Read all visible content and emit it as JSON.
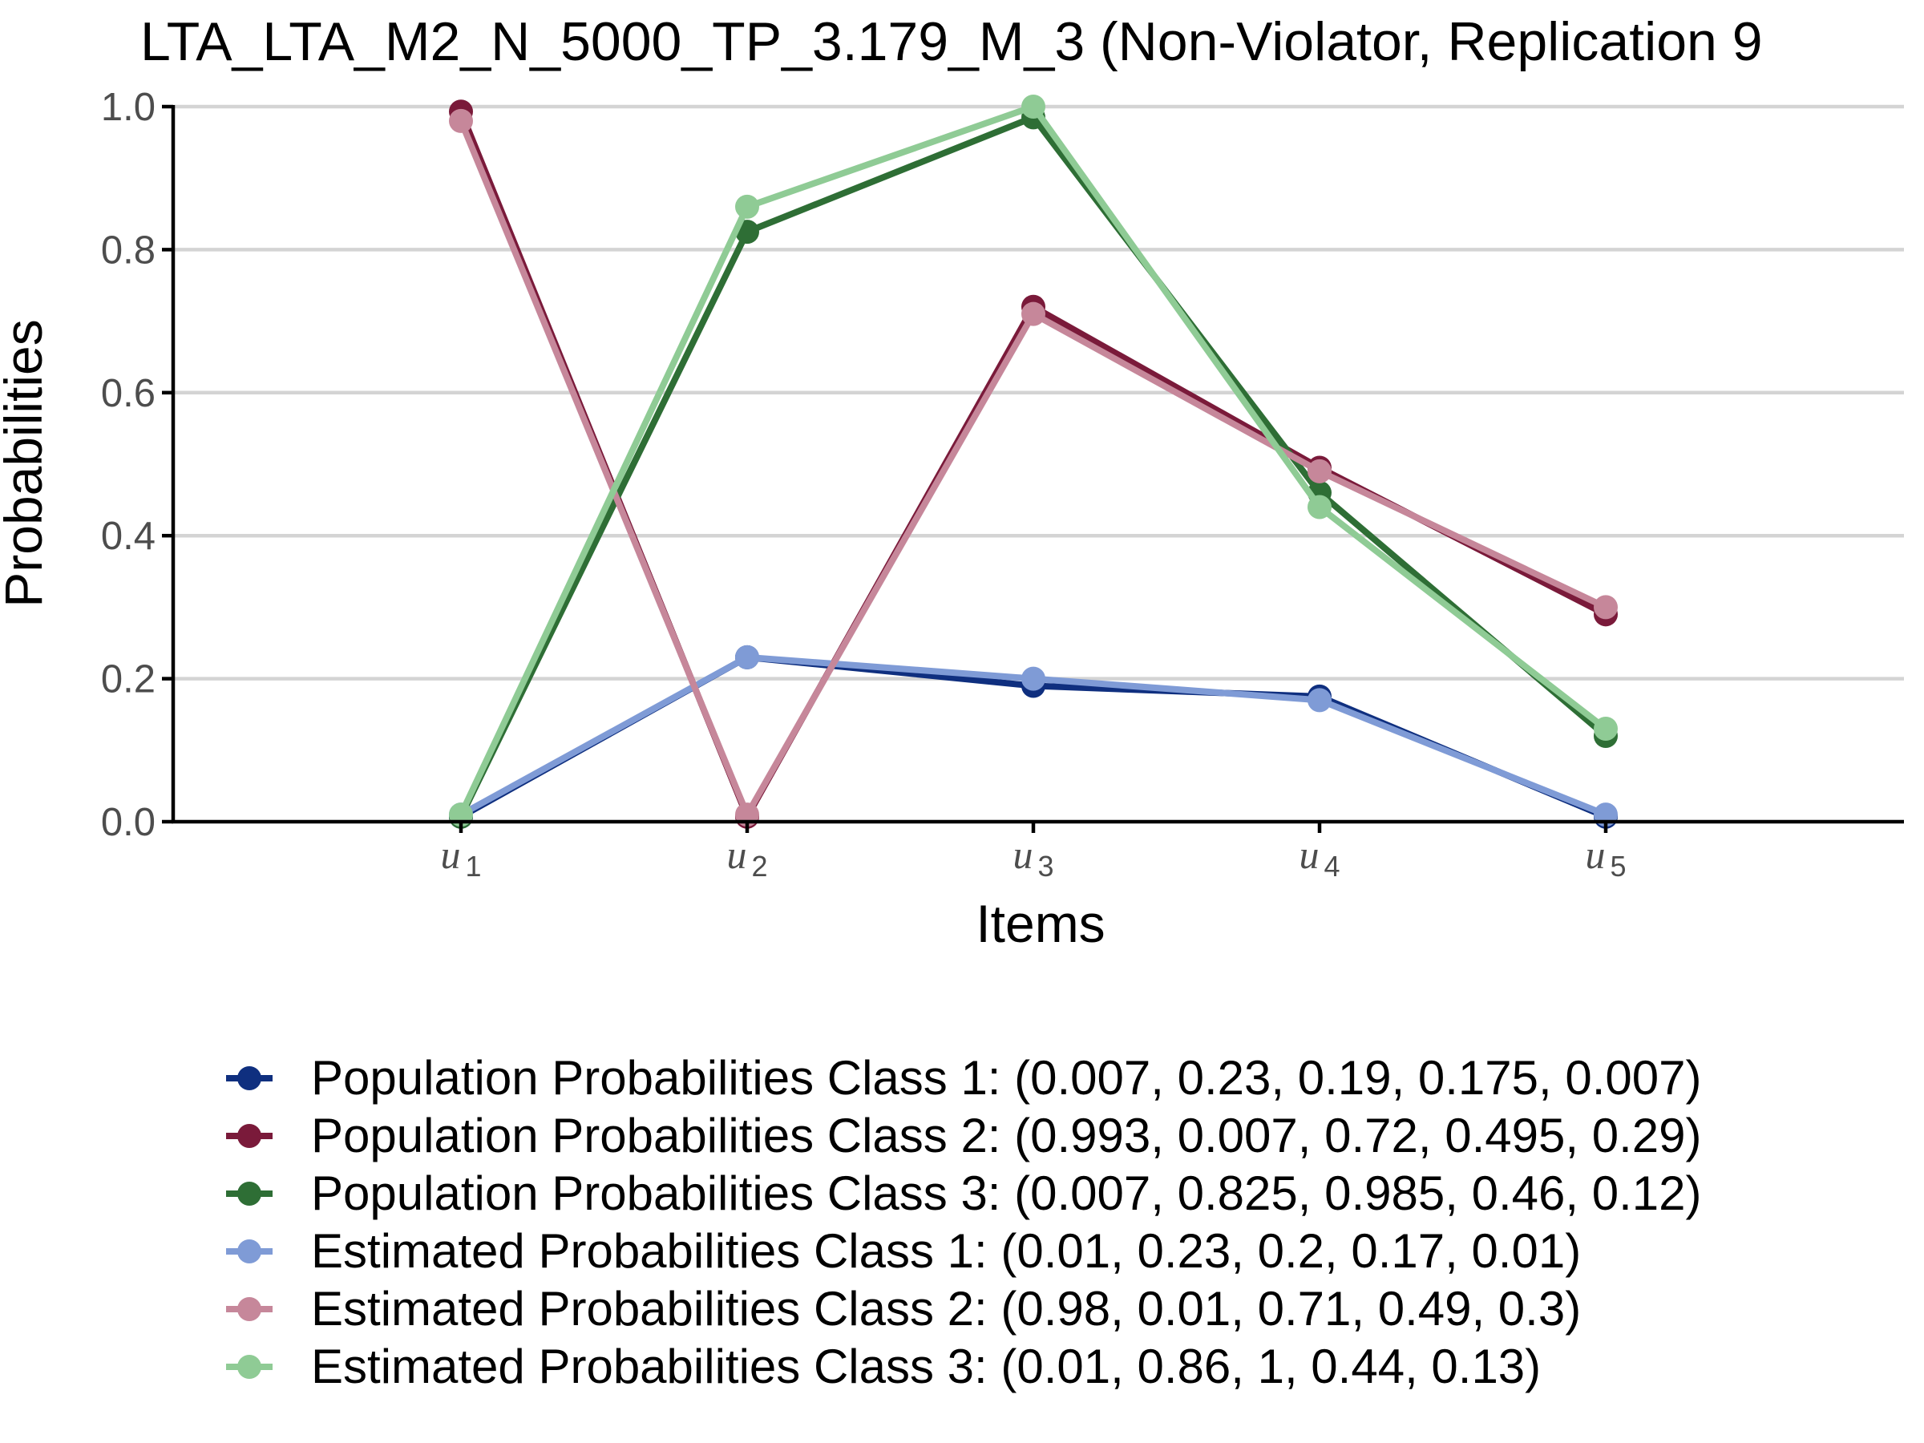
{
  "chart_data": {
    "type": "line",
    "title": "LTA_LTA_M2_N_5000_TP_3.179_M_3 (Non-Violator, Replication 9",
    "xlabel": "Items",
    "ylabel": "Probabilities",
    "categories": [
      {
        "main": "u",
        "sub": "1"
      },
      {
        "main": "u",
        "sub": "2"
      },
      {
        "main": "u",
        "sub": "3"
      },
      {
        "main": "u",
        "sub": "4"
      },
      {
        "main": "u",
        "sub": "5"
      }
    ],
    "ylim": [
      0,
      1
    ],
    "yticks": [
      "0.0",
      "0.2",
      "0.4",
      "0.6",
      "0.8",
      "1.0"
    ],
    "grid": "horizontal",
    "legend_position": "bottom",
    "series": [
      {
        "name": "Population Probabilities Class 1: (0.007, 0.23, 0.19, 0.175, 0.007)",
        "color": "#0f2f7f",
        "values": [
          0.007,
          0.23,
          0.19,
          0.175,
          0.007
        ]
      },
      {
        "name": "Population Probabilities Class 2: (0.993, 0.007, 0.72, 0.495, 0.29)",
        "color": "#7a1a3a",
        "values": [
          0.993,
          0.007,
          0.72,
          0.495,
          0.29
        ]
      },
      {
        "name": "Population Probabilities Class 3: (0.007, 0.825, 0.985, 0.46, 0.12)",
        "color": "#2e6e35",
        "values": [
          0.007,
          0.825,
          0.985,
          0.46,
          0.12
        ]
      },
      {
        "name": "Estimated Probabilities Class 1: (0.01, 0.23, 0.2, 0.17, 0.01)",
        "color": "#7f9bd6",
        "values": [
          0.01,
          0.23,
          0.2,
          0.17,
          0.01
        ]
      },
      {
        "name": "Estimated Probabilities Class 2: (0.98, 0.01, 0.71, 0.49, 0.3)",
        "color": "#c6879a",
        "values": [
          0.98,
          0.01,
          0.71,
          0.49,
          0.3
        ]
      },
      {
        "name": "Estimated Probabilities Class 3: (0.01, 0.86, 1, 0.44, 0.13)",
        "color": "#8fcb95",
        "values": [
          0.01,
          0.86,
          1,
          0.44,
          0.13
        ]
      }
    ]
  }
}
